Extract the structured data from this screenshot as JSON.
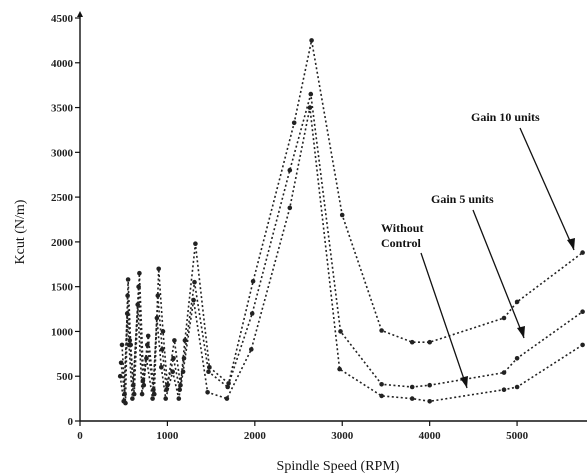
{
  "chart_data": {
    "type": "line",
    "title": "",
    "xlabel": "Spindle Speed (RPM)",
    "ylabel": "Kcut  (N/m)",
    "xlim": [
      0,
      5800
    ],
    "ylim": [
      0,
      4500
    ],
    "grid": false,
    "x_ticks": [
      0,
      1000,
      2000,
      3000,
      4000,
      5000
    ],
    "y_ticks": [
      0,
      500,
      1000,
      1500,
      2000,
      2500,
      3000,
      3500,
      4000,
      4500
    ],
    "series": [
      {
        "id": "gain10",
        "values": [
          [
            480,
            850
          ],
          [
            520,
            200
          ],
          [
            550,
            1580
          ],
          [
            580,
            850
          ],
          [
            620,
            300
          ],
          [
            680,
            1650
          ],
          [
            730,
            400
          ],
          [
            780,
            950
          ],
          [
            850,
            300
          ],
          [
            900,
            1700
          ],
          [
            950,
            1000
          ],
          [
            1000,
            400
          ],
          [
            1080,
            900
          ],
          [
            1150,
            400
          ],
          [
            1200,
            900
          ],
          [
            1320,
            1980
          ],
          [
            1480,
            600
          ],
          [
            1700,
            420
          ],
          [
            1980,
            1560
          ],
          [
            2450,
            3330
          ],
          [
            2650,
            4250
          ],
          [
            3000,
            2300
          ],
          [
            3450,
            1010
          ],
          [
            3800,
            880
          ],
          [
            4000,
            880
          ],
          [
            4850,
            1150
          ],
          [
            5000,
            1330
          ],
          [
            5750,
            1880
          ]
        ]
      },
      {
        "id": "gain5",
        "values": [
          [
            470,
            650
          ],
          [
            510,
            300
          ],
          [
            545,
            1400
          ],
          [
            570,
            900
          ],
          [
            610,
            400
          ],
          [
            670,
            1500
          ],
          [
            720,
            450
          ],
          [
            770,
            850
          ],
          [
            840,
            350
          ],
          [
            890,
            1400
          ],
          [
            940,
            800
          ],
          [
            990,
            350
          ],
          [
            1070,
            700
          ],
          [
            1140,
            350
          ],
          [
            1190,
            700
          ],
          [
            1310,
            1550
          ],
          [
            1470,
            550
          ],
          [
            1690,
            380
          ],
          [
            1970,
            1200
          ],
          [
            2400,
            2800
          ],
          [
            2640,
            3650
          ],
          [
            2980,
            1000
          ],
          [
            3450,
            410
          ],
          [
            3800,
            380
          ],
          [
            4000,
            400
          ],
          [
            4850,
            540
          ],
          [
            5000,
            700
          ],
          [
            5750,
            1220
          ]
        ]
      },
      {
        "id": "without_control",
        "values": [
          [
            460,
            500
          ],
          [
            500,
            220
          ],
          [
            540,
            1200
          ],
          [
            560,
            850
          ],
          [
            600,
            250
          ],
          [
            660,
            1300
          ],
          [
            710,
            300
          ],
          [
            760,
            700
          ],
          [
            830,
            250
          ],
          [
            880,
            1150
          ],
          [
            930,
            600
          ],
          [
            980,
            250
          ],
          [
            1060,
            550
          ],
          [
            1130,
            250
          ],
          [
            1180,
            550
          ],
          [
            1300,
            1350
          ],
          [
            1460,
            320
          ],
          [
            1680,
            250
          ],
          [
            1960,
            800
          ],
          [
            2400,
            2380
          ],
          [
            2630,
            3500
          ],
          [
            2970,
            580
          ],
          [
            3450,
            280
          ],
          [
            3800,
            250
          ],
          [
            4000,
            220
          ],
          [
            4850,
            350
          ],
          [
            5000,
            380
          ],
          [
            5750,
            850
          ]
        ]
      }
    ],
    "annotations": {
      "gain10": "Gain 10 units",
      "gain5": "Gain 5 units",
      "without_line1": "Without",
      "without_line2": "Control"
    }
  }
}
